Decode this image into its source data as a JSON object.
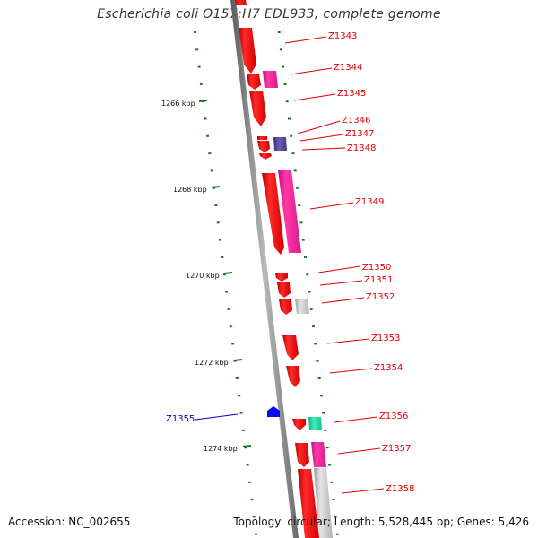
{
  "title": "Escherichia coli O157:H7 EDL933, complete genome",
  "footer": {
    "accession": "Accession: NC_002655",
    "summary": "Topology: circular; Length: 5,528,445 bp; Genes: 5,426"
  },
  "colors": {
    "forward_gene": "#ff1a1a",
    "pink_gene": "#ff2a9a",
    "purple_gene": "#5a4aa0",
    "grey_gene": "#c8c8c8",
    "teal_gene": "#22e0a0",
    "blue_gene": "#0a0aee",
    "label_red": "#e00000",
    "label_blue": "#0000cc",
    "tick_green": "#1a7a1a",
    "backbone": "#8a8a8a"
  },
  "kbp_ticks": [
    "1266 kbp",
    "1268 kbp",
    "1270 kbp",
    "1272 kbp",
    "1274 kbp"
  ],
  "genes": [
    {
      "label": "Z1343",
      "color": "red"
    },
    {
      "label": "Z1344",
      "color": "pink"
    },
    {
      "label": "Z1345",
      "color": "red"
    },
    {
      "label": "Z1346",
      "color": "red"
    },
    {
      "label": "Z1347",
      "color": "purple"
    },
    {
      "label": "Z1348",
      "color": "red"
    },
    {
      "label": "Z1349",
      "color": "pink"
    },
    {
      "label": "Z1350",
      "color": "red"
    },
    {
      "label": "Z1351",
      "color": "red"
    },
    {
      "label": "Z1352",
      "color": "grey"
    },
    {
      "label": "Z1353",
      "color": "red"
    },
    {
      "label": "Z1354",
      "color": "red"
    },
    {
      "label": "Z1355",
      "color": "blue"
    },
    {
      "label": "Z1356",
      "color": "teal"
    },
    {
      "label": "Z1357",
      "color": "pink"
    },
    {
      "label": "Z1358",
      "color": "grey"
    }
  ]
}
